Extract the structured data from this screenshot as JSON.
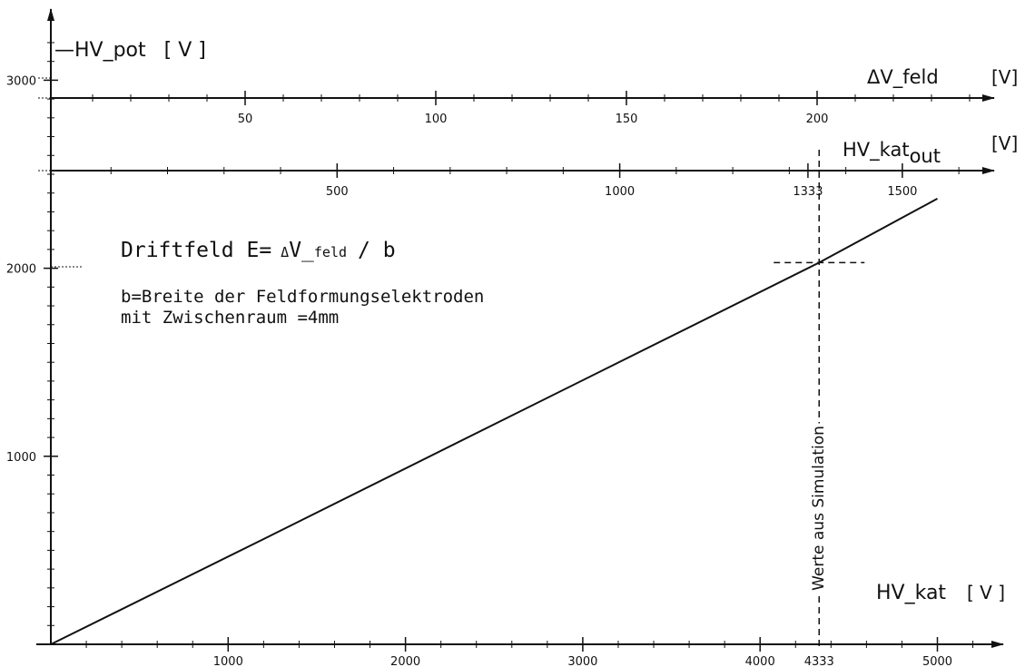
{
  "chart_data": {
    "type": "line",
    "y_axis": {
      "label": "HV_pot",
      "unit": "[ V ]",
      "ticks": [
        1000,
        2000,
        3000
      ],
      "tick_labels": [
        "1000",
        "2000",
        "3000"
      ],
      "range": [
        0,
        3300
      ]
    },
    "x_axis": {
      "label": "HV_kat",
      "unit": "[ V ]",
      "ticks": [
        1000,
        2000,
        3000,
        4000,
        5000
      ],
      "tick_labels": [
        "1000",
        "2000",
        "3000",
        "4000",
        "5000"
      ],
      "range": [
        0,
        5400
      ]
    },
    "top_axis_feld": {
      "label": "ΔV_feld",
      "unit": "[V]",
      "ticks": [
        50,
        100,
        150,
        200
      ],
      "tick_labels": [
        "50",
        "100",
        "150",
        "200"
      ]
    },
    "top_axis_out": {
      "label": "HV_kat",
      "label_sub": "out",
      "unit": "[V]",
      "ticks": [
        500,
        1000,
        1333,
        1500
      ],
      "tick_labels": [
        "500",
        "1000",
        "1333",
        "1500"
      ]
    },
    "series": [
      {
        "x": [
          0,
          1200,
          4333,
          5000
        ],
        "y": [
          0,
          560,
          2030,
          2370
        ]
      }
    ],
    "marker": {
      "x_value": 4333,
      "x_label": "4333",
      "y_value": 2030,
      "vertical_note": "Werte aus Simulation"
    },
    "annotations": {
      "formula_prefix": "Driftfeld E=",
      "formula_delta": "Δ",
      "formula_var": "V_",
      "formula_sub": "feld",
      "formula_suffix": "/ b",
      "line1": "b=Breite der Feldformungselektroden",
      "line2": "mit Zwischenraum =4mm"
    },
    "grid": false
  }
}
